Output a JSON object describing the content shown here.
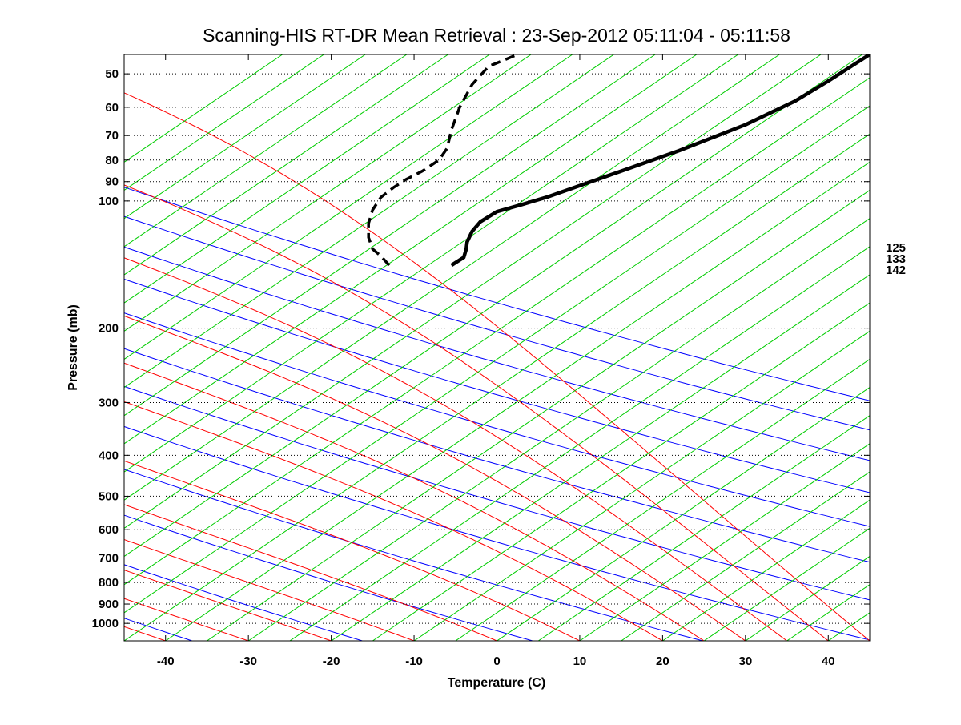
{
  "chart_data": {
    "type": "line",
    "title": "Scanning-HIS RT-DR Mean Retrieval : 23-Sep-2012 05:11:04 - 05:11:58",
    "xlabel": "Temperature (C)",
    "ylabel": "Pressure (mb)",
    "xlim": [
      -45,
      45
    ],
    "ylim": [
      1100,
      45
    ],
    "yscale": "log",
    "grid": "horizontal dotted at labelled pressure levels",
    "x_ticks": [
      -40,
      -30,
      -20,
      -10,
      0,
      10,
      20,
      30,
      40
    ],
    "x_tick_labels": [
      "-40",
      "-30",
      "-20",
      "-10",
      "0",
      "10",
      "20",
      "30",
      "40"
    ],
    "y_ticks": [
      50,
      60,
      70,
      80,
      90,
      100,
      200,
      300,
      400,
      500,
      600,
      700,
      800,
      900,
      1000
    ],
    "y_tick_labels": [
      "50",
      "60",
      "70",
      "80",
      "90",
      "100",
      "200",
      "300",
      "400",
      "500",
      "600",
      "700",
      "800",
      "900",
      "1000"
    ],
    "right_labels": [
      "125",
      "133",
      "142"
    ],
    "background_lines": {
      "dry_adiabat_thetas_K": [
        210,
        230,
        250,
        270,
        290,
        310,
        330,
        350,
        370,
        390,
        410,
        430,
        450
      ],
      "moist_adiabat_surface_temps_C": [
        -50,
        -40,
        -30,
        -20,
        -10,
        0,
        10,
        20,
        25,
        30,
        35,
        40,
        45
      ],
      "mixing_ratio_skew_per_decade_C": 75,
      "colors": {
        "dry_adiabat": "#0000ff",
        "moist_adiabat": "#ff0000",
        "mixing_ratio": "#00cc00"
      }
    },
    "series": [
      {
        "style": "solid",
        "color": "#000000",
        "points": [
          [
            -5.5,
            142
          ],
          [
            -4,
            136
          ],
          [
            -3.7,
            130
          ],
          [
            -3.6,
            125
          ],
          [
            -3,
            118
          ],
          [
            -2,
            112
          ],
          [
            0,
            106
          ],
          [
            3,
            102
          ],
          [
            6,
            98
          ],
          [
            10,
            92
          ],
          [
            15,
            85
          ],
          [
            22,
            76
          ],
          [
            30,
            66
          ],
          [
            36,
            58
          ],
          [
            40,
            52
          ],
          [
            45,
            45
          ]
        ]
      },
      {
        "style": "dashed",
        "color": "#000000",
        "points": [
          [
            -13,
            142
          ],
          [
            -14,
            135
          ],
          [
            -15,
            130
          ],
          [
            -15.5,
            122
          ],
          [
            -15.5,
            113
          ],
          [
            -15,
            105
          ],
          [
            -14,
            98
          ],
          [
            -12.5,
            93
          ],
          [
            -11,
            89
          ],
          [
            -9,
            85
          ],
          [
            -7,
            80
          ],
          [
            -6,
            75
          ],
          [
            -5.5,
            68
          ],
          [
            -4.5,
            60
          ],
          [
            -3,
            53
          ],
          [
            -1,
            48
          ],
          [
            2.5,
            45
          ]
        ]
      }
    ]
  }
}
